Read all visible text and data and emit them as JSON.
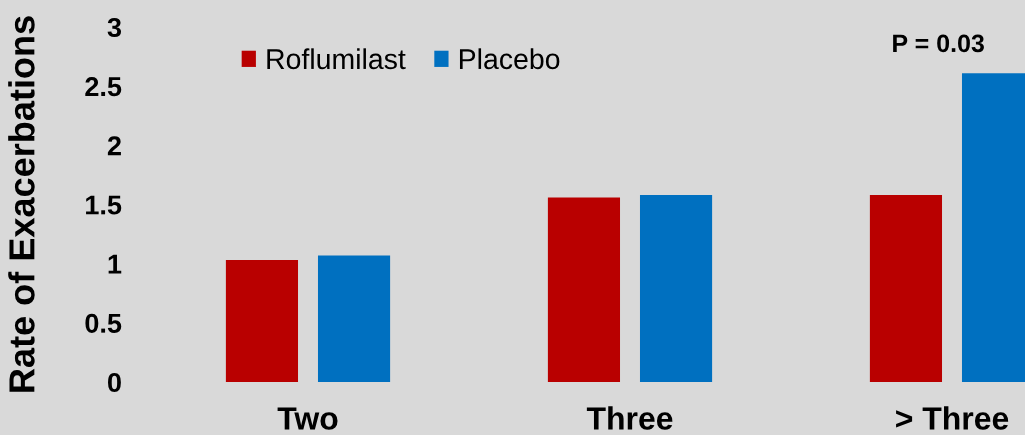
{
  "chart_data": {
    "type": "bar",
    "ylabel": "Rate of Exacerbations",
    "categories": [
      "Two",
      "Three",
      "> Three"
    ],
    "series": [
      {
        "name": "Roflumilast",
        "color": "#b90000",
        "values": [
          1.03,
          1.56,
          1.58
        ]
      },
      {
        "name": "Placebo",
        "color": "#0070c0",
        "values": [
          1.07,
          1.58,
          2.61
        ]
      }
    ],
    "ylim": [
      0,
      3
    ],
    "yticks": [
      0,
      0.5,
      1,
      1.5,
      2,
      2.5,
      3
    ],
    "legend": "top left",
    "annotations": [
      "P = 0.03"
    ]
  }
}
